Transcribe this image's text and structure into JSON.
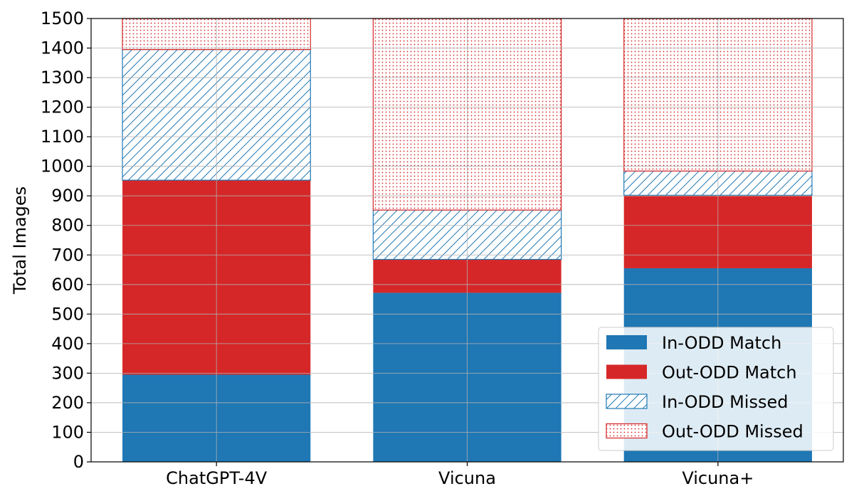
{
  "chart_data": {
    "type": "bar",
    "stacked": true,
    "title": "",
    "xlabel": "",
    "ylabel": "Total Images",
    "ylim": [
      0,
      1500
    ],
    "yticks": [
      0,
      100,
      200,
      300,
      400,
      500,
      600,
      700,
      800,
      900,
      1000,
      1100,
      1200,
      1300,
      1400,
      1500
    ],
    "categories": [
      "ChatGPT-4V",
      "Vicuna",
      "Vicuna+"
    ],
    "grid": true,
    "legend_position": "bottom-right",
    "series": [
      {
        "name": "In-ODD Match",
        "color": "#1f77b4",
        "style": "solid",
        "values": [
          295,
          572,
          655
        ]
      },
      {
        "name": "Out-ODD Match",
        "color": "#d62728",
        "style": "solid",
        "values": [
          658,
          113,
          247
        ]
      },
      {
        "name": "In-ODD Missed",
        "color": "#1f77b4",
        "style": "hatch-diagonal",
        "values": [
          442,
          167,
          82
        ]
      },
      {
        "name": "Out-ODD Missed",
        "color": "#d62728",
        "style": "dots",
        "values": [
          105,
          648,
          516
        ]
      }
    ]
  }
}
